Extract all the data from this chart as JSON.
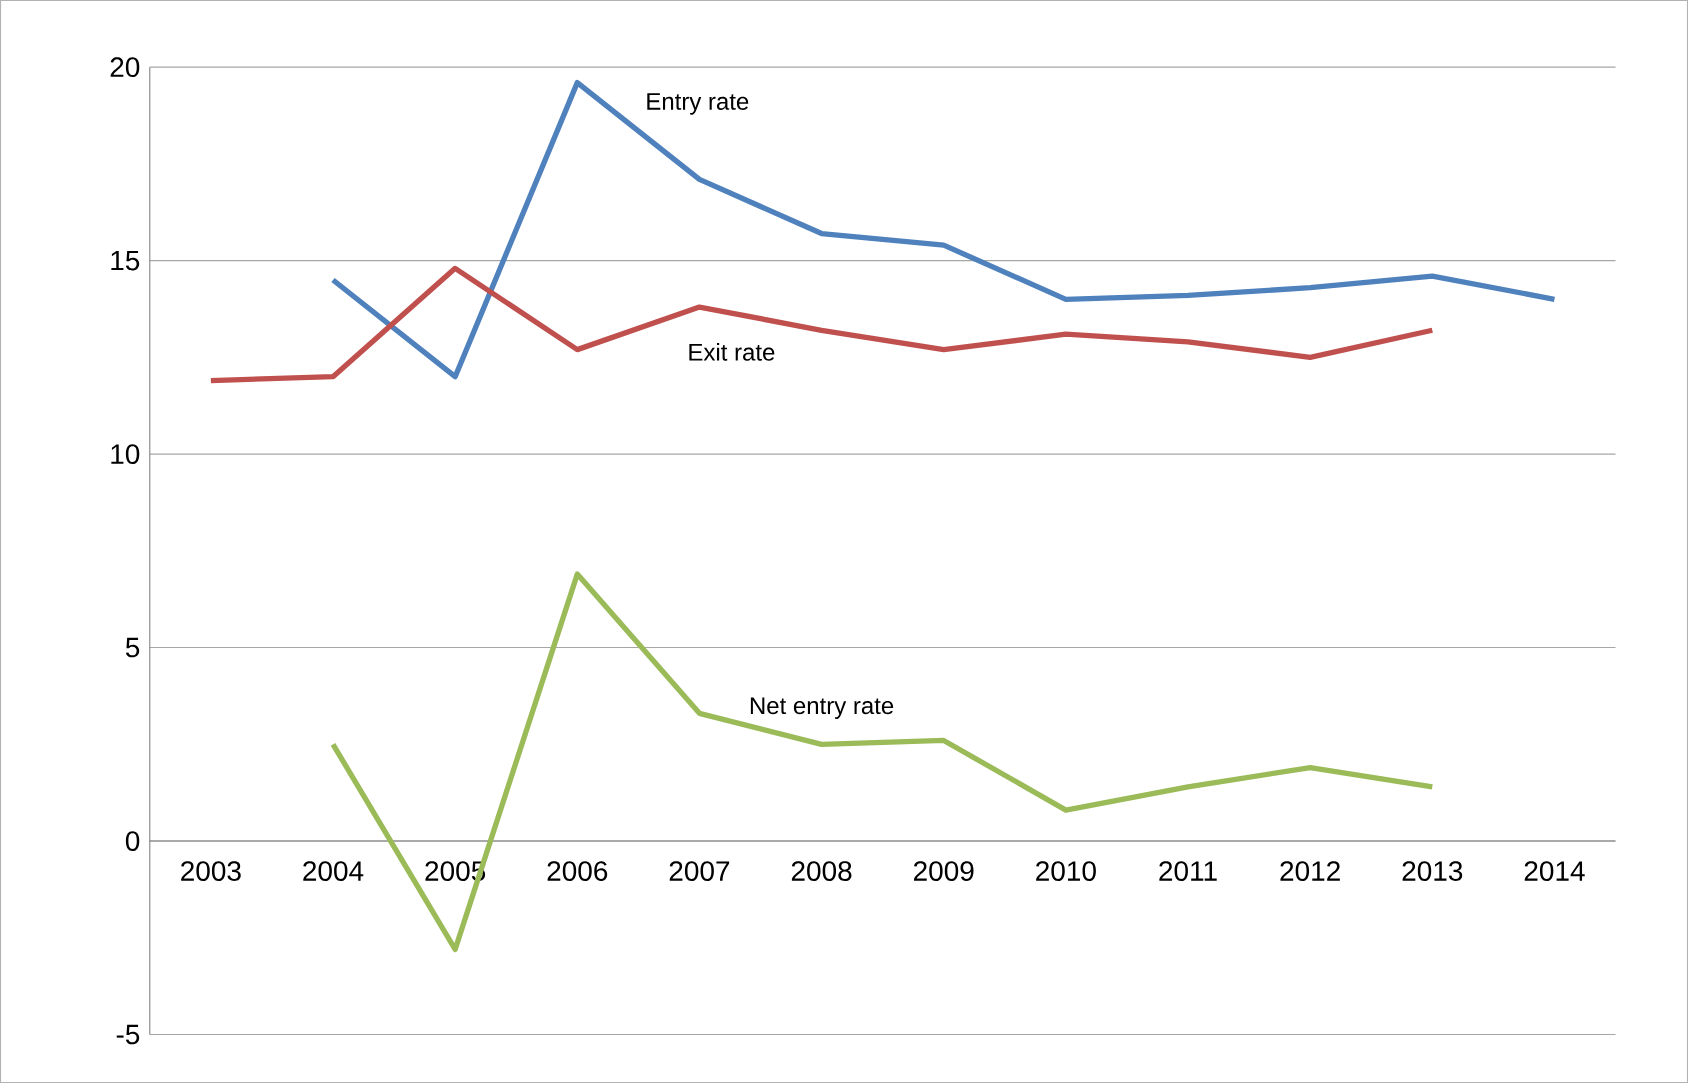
{
  "chart_data": {
    "type": "line",
    "categories": [
      "2003",
      "2004",
      "2005",
      "2006",
      "2007",
      "2008",
      "2009",
      "2010",
      "2011",
      "2012",
      "2013",
      "2014"
    ],
    "series": [
      {
        "name": "Entry rate",
        "color": "#4f81bd",
        "values": [
          null,
          14.5,
          12.0,
          19.6,
          17.1,
          15.7,
          15.4,
          14.0,
          14.1,
          14.3,
          14.6,
          14.0
        ]
      },
      {
        "name": "Exit rate",
        "color": "#c0504d",
        "values": [
          11.9,
          12.0,
          14.8,
          12.7,
          13.8,
          13.2,
          12.7,
          13.1,
          12.9,
          12.5,
          13.2,
          null
        ]
      },
      {
        "name": "Net entry rate",
        "color": "#9bbb59",
        "values": [
          null,
          2.5,
          -2.8,
          6.9,
          3.3,
          2.5,
          2.6,
          0.8,
          1.4,
          1.9,
          1.4,
          null
        ]
      }
    ],
    "ylim": [
      -5,
      20
    ],
    "yticks": [
      -5,
      0,
      5,
      10,
      15,
      20
    ],
    "grid": "y",
    "legend": false,
    "marker": "none",
    "line_style": "solid"
  }
}
